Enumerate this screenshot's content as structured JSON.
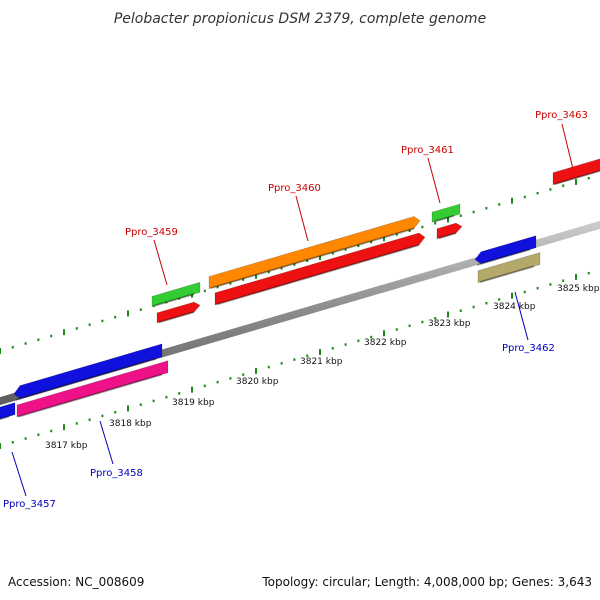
{
  "title": "Pelobacter propionicus DSM 2379, complete genome",
  "footer": {
    "accession": "Accession: NC_008609",
    "summary": "Topology: circular; Length: 4,008,000 bp; Genes: 3,643"
  },
  "colors": {
    "backbone": "#888888",
    "tick": "#1a8a1a",
    "forward_label": "#cc0000",
    "reverse_label": "#0000bb",
    "leader_top": "#cc0000",
    "leader_bottom": "#0000bb"
  },
  "scale_labels": [
    "3817 kbp",
    "3818 kbp",
    "3819 kbp",
    "3820 kbp",
    "3821 kbp",
    "3822 kbp",
    "3823 kbp",
    "3824 kbp",
    "3825 kbp"
  ],
  "genes": [
    {
      "name": "Ppro_3457",
      "label_color": "reverse_label"
    },
    {
      "name": "Ppro_3458",
      "label_color": "reverse_label"
    },
    {
      "name": "Ppro_3459",
      "label_color": "forward_label"
    },
    {
      "name": "Ppro_3460",
      "label_color": "forward_label"
    },
    {
      "name": "Ppro_3461",
      "label_color": "forward_label"
    },
    {
      "name": "Ppro_3462",
      "label_color": "reverse_label"
    },
    {
      "name": "Ppro_3463",
      "label_color": "forward_label"
    }
  ],
  "feature_colors": {
    "red": "#ee1111",
    "green": "#33cc33",
    "orange": "#ff8800",
    "blue": "#1111dd",
    "pink": "#ee1188",
    "khaki": "#b3a96b"
  }
}
